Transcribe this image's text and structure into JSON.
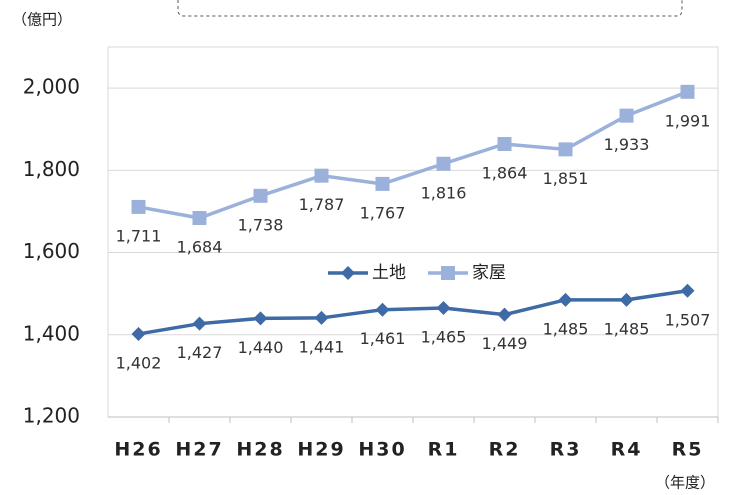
{
  "chart_data": {
    "type": "line",
    "y_unit": "（億円）",
    "x_unit": "（年度）",
    "categories": [
      "H26",
      "H27",
      "H28",
      "H29",
      "H30",
      "R1",
      "R2",
      "R3",
      "R4",
      "R5"
    ],
    "series": [
      {
        "name": "土地",
        "color": "#3e6aa6",
        "marker": "diamond",
        "values": [
          1402,
          1427,
          1440,
          1441,
          1461,
          1465,
          1449,
          1485,
          1485,
          1507
        ],
        "value_labels": [
          "1,402",
          "1,427",
          "1,440",
          "1,441",
          "1,461",
          "1,465",
          "1,449",
          "1,485",
          "1,485",
          "1,507"
        ]
      },
      {
        "name": "家屋",
        "color": "#9bb1db",
        "marker": "square",
        "values": [
          1711,
          1684,
          1738,
          1787,
          1767,
          1816,
          1864,
          1851,
          1933,
          1991
        ],
        "value_labels": [
          "1,711",
          "1,684",
          "1,738",
          "1,787",
          "1,767",
          "1,816",
          "1,864",
          "1,851",
          "1,933",
          "1,991"
        ]
      }
    ],
    "ylim": [
      1200,
      2100
    ],
    "yticks": [
      {
        "value": 1200,
        "label": "1,200"
      },
      {
        "value": 1400,
        "label": "1,400"
      },
      {
        "value": 1600,
        "label": "1,600"
      },
      {
        "value": 1800,
        "label": "1,800"
      },
      {
        "value": 2000,
        "label": "2,000"
      }
    ],
    "grid": true
  }
}
